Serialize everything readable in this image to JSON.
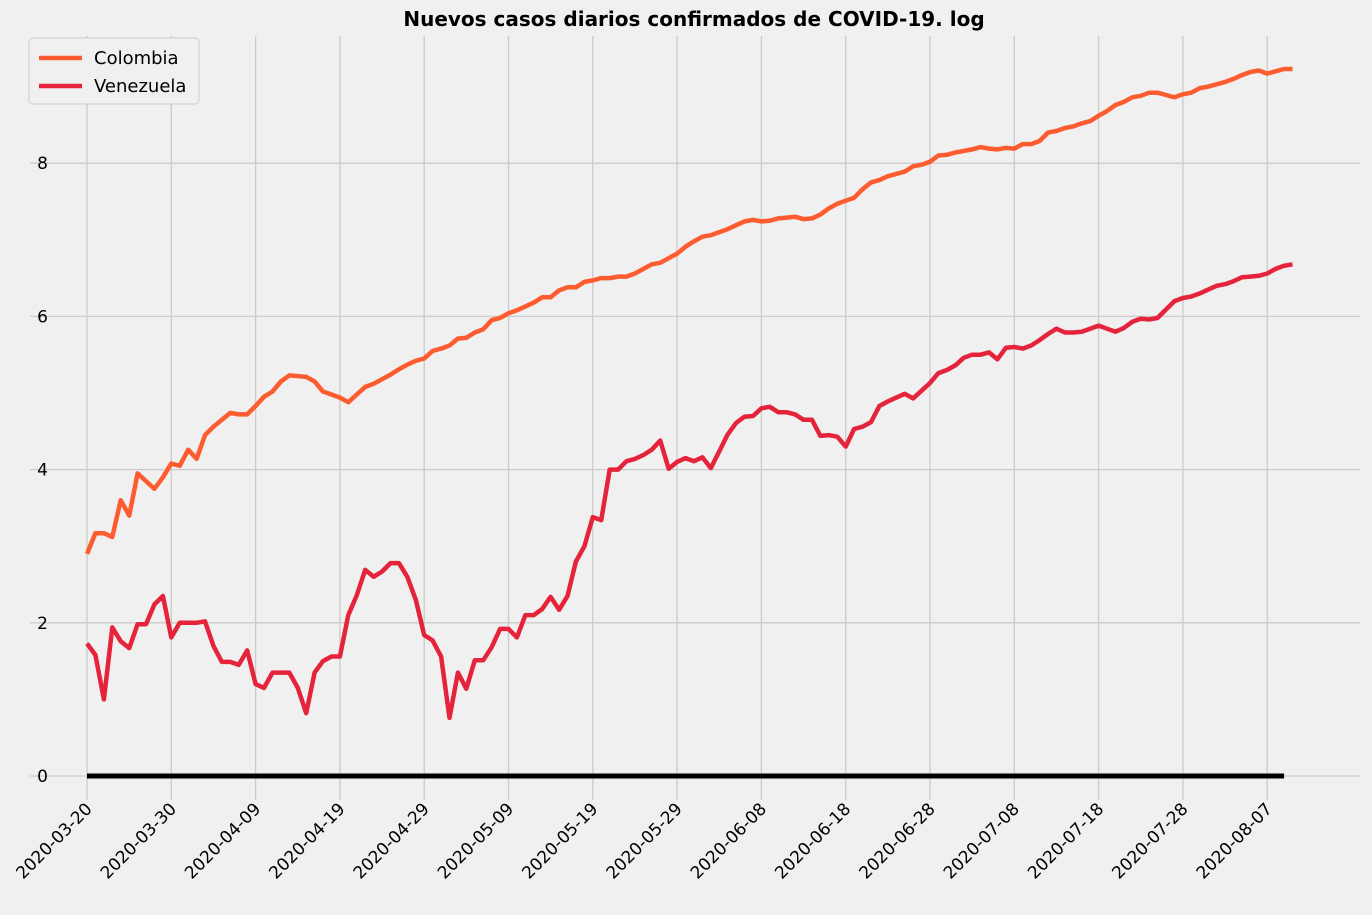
{
  "chart_data": {
    "type": "line",
    "title": "Nuevos casos diarios confirmados de COVID-19. log",
    "xlabel": "",
    "ylabel": "",
    "x_start": "2020-03-20",
    "x_end": "2020-08-09",
    "x_ticks": [
      "2020-03-20",
      "2020-03-30",
      "2020-04-09",
      "2020-04-19",
      "2020-04-29",
      "2020-05-09",
      "2020-05-19",
      "2020-05-29",
      "2020-06-08",
      "2020-06-18",
      "2020-06-28",
      "2020-07-08",
      "2020-07-18",
      "2020-07-28",
      "2020-08-07"
    ],
    "y_ticks": [
      0,
      2,
      4,
      6,
      8
    ],
    "ylim": [
      -0.5,
      9.65
    ],
    "grid": true,
    "legend_position": "top-left",
    "series": [
      {
        "name": "Colombia",
        "color": "#fc5c2f",
        "values": [
          [
            0,
            2.9
          ],
          [
            1,
            3.17
          ],
          [
            2,
            3.17
          ],
          [
            3,
            3.12
          ],
          [
            4,
            3.6
          ],
          [
            5,
            3.4
          ],
          [
            6,
            3.95
          ],
          [
            7,
            3.85
          ],
          [
            8,
            3.75
          ],
          [
            9,
            3.9
          ],
          [
            10,
            4.08
          ],
          [
            11,
            4.05
          ],
          [
            12,
            4.26
          ],
          [
            13,
            4.14
          ],
          [
            14,
            4.45
          ],
          [
            15,
            4.56
          ],
          [
            16,
            4.65
          ],
          [
            17,
            4.74
          ],
          [
            18,
            4.72
          ],
          [
            19,
            4.72
          ],
          [
            20,
            4.83
          ],
          [
            21,
            4.95
          ],
          [
            22,
            5.02
          ],
          [
            23,
            5.15
          ],
          [
            24,
            5.23
          ],
          [
            25,
            5.22
          ],
          [
            26,
            5.21
          ],
          [
            27,
            5.15
          ],
          [
            28,
            5.02
          ],
          [
            29,
            4.98
          ],
          [
            30,
            4.94
          ],
          [
            31,
            4.88
          ],
          [
            32,
            4.98
          ],
          [
            33,
            5.08
          ],
          [
            34,
            5.12
          ],
          [
            35,
            5.18
          ],
          [
            36,
            5.24
          ],
          [
            37,
            5.31
          ],
          [
            38,
            5.37
          ],
          [
            39,
            5.42
          ],
          [
            40,
            5.45
          ],
          [
            41,
            5.55
          ],
          [
            42,
            5.58
          ],
          [
            43,
            5.62
          ],
          [
            44,
            5.71
          ],
          [
            45,
            5.72
          ],
          [
            46,
            5.79
          ],
          [
            47,
            5.83
          ],
          [
            48,
            5.95
          ],
          [
            49,
            5.98
          ],
          [
            50,
            6.04
          ],
          [
            51,
            6.08
          ],
          [
            52,
            6.13
          ],
          [
            53,
            6.18
          ],
          [
            54,
            6.25
          ],
          [
            55,
            6.25
          ],
          [
            56,
            6.34
          ],
          [
            57,
            6.38
          ],
          [
            58,
            6.38
          ],
          [
            59,
            6.45
          ],
          [
            60,
            6.47
          ],
          [
            61,
            6.5
          ],
          [
            62,
            6.5
          ],
          [
            63,
            6.52
          ],
          [
            64,
            6.52
          ],
          [
            65,
            6.56
          ],
          [
            66,
            6.62
          ],
          [
            67,
            6.68
          ],
          [
            68,
            6.7
          ],
          [
            69,
            6.76
          ],
          [
            70,
            6.82
          ],
          [
            71,
            6.91
          ],
          [
            72,
            6.98
          ],
          [
            73,
            7.04
          ],
          [
            74,
            7.06
          ],
          [
            75,
            7.1
          ],
          [
            76,
            7.14
          ],
          [
            77,
            7.19
          ],
          [
            78,
            7.24
          ],
          [
            79,
            7.26
          ],
          [
            80,
            7.24
          ],
          [
            81,
            7.25
          ],
          [
            82,
            7.28
          ],
          [
            83,
            7.29
          ],
          [
            84,
            7.3
          ],
          [
            85,
            7.27
          ],
          [
            86,
            7.28
          ],
          [
            87,
            7.33
          ],
          [
            88,
            7.41
          ],
          [
            89,
            7.47
          ],
          [
            90,
            7.51
          ],
          [
            91,
            7.55
          ],
          [
            92,
            7.66
          ],
          [
            93,
            7.75
          ],
          [
            94,
            7.78
          ],
          [
            95,
            7.83
          ],
          [
            96,
            7.86
          ],
          [
            97,
            7.89
          ],
          [
            98,
            7.96
          ],
          [
            99,
            7.98
          ],
          [
            100,
            8.02
          ],
          [
            101,
            8.1
          ],
          [
            102,
            8.11
          ],
          [
            103,
            8.14
          ],
          [
            104,
            8.16
          ],
          [
            105,
            8.18
          ],
          [
            106,
            8.21
          ],
          [
            107,
            8.19
          ],
          [
            108,
            8.18
          ],
          [
            109,
            8.2
          ],
          [
            110,
            8.19
          ],
          [
            111,
            8.25
          ],
          [
            112,
            8.25
          ],
          [
            113,
            8.29
          ],
          [
            114,
            8.4
          ],
          [
            115,
            8.42
          ],
          [
            116,
            8.46
          ],
          [
            117,
            8.48
          ],
          [
            118,
            8.52
          ],
          [
            119,
            8.55
          ],
          [
            120,
            8.62
          ],
          [
            121,
            8.68
          ],
          [
            122,
            8.76
          ],
          [
            123,
            8.8
          ],
          [
            124,
            8.86
          ],
          [
            125,
            8.88
          ],
          [
            126,
            8.92
          ],
          [
            127,
            8.92
          ],
          [
            128,
            8.89
          ],
          [
            129,
            8.86
          ],
          [
            130,
            8.9
          ],
          [
            131,
            8.92
          ],
          [
            132,
            8.98
          ],
          [
            133,
            9.0
          ],
          [
            134,
            9.03
          ],
          [
            135,
            9.06
          ],
          [
            136,
            9.1
          ],
          [
            137,
            9.15
          ],
          [
            138,
            9.19
          ],
          [
            139,
            9.21
          ],
          [
            140,
            9.17
          ],
          [
            141,
            9.2
          ],
          [
            142,
            9.23
          ],
          [
            143,
            9.23
          ]
        ]
      },
      {
        "name": "Venezuela",
        "color": "#e5243b",
        "values": [
          [
            0,
            1.73
          ],
          [
            1,
            1.58
          ],
          [
            2,
            1.0
          ],
          [
            3,
            1.94
          ],
          [
            4,
            1.76
          ],
          [
            5,
            1.67
          ],
          [
            6,
            1.98
          ],
          [
            7,
            1.98
          ],
          [
            8,
            2.24
          ],
          [
            9,
            2.35
          ],
          [
            10,
            1.81
          ],
          [
            11,
            2.0
          ],
          [
            12,
            2.0
          ],
          [
            13,
            2.0
          ],
          [
            14,
            2.02
          ],
          [
            15,
            1.7
          ],
          [
            16,
            1.49
          ],
          [
            17,
            1.49
          ],
          [
            18,
            1.45
          ],
          [
            19,
            1.64
          ],
          [
            20,
            1.2
          ],
          [
            21,
            1.15
          ],
          [
            22,
            1.35
          ],
          [
            23,
            1.35
          ],
          [
            24,
            1.35
          ],
          [
            25,
            1.15
          ],
          [
            26,
            0.82
          ],
          [
            27,
            1.35
          ],
          [
            28,
            1.5
          ],
          [
            29,
            1.56
          ],
          [
            30,
            1.56
          ],
          [
            31,
            2.1
          ],
          [
            32,
            2.36
          ],
          [
            33,
            2.69
          ],
          [
            34,
            2.6
          ],
          [
            35,
            2.67
          ],
          [
            36,
            2.78
          ],
          [
            37,
            2.78
          ],
          [
            38,
            2.6
          ],
          [
            39,
            2.3
          ],
          [
            40,
            1.84
          ],
          [
            41,
            1.77
          ],
          [
            42,
            1.56
          ],
          [
            43,
            0.76
          ],
          [
            44,
            1.35
          ],
          [
            45,
            1.14
          ],
          [
            46,
            1.51
          ],
          [
            47,
            1.51
          ],
          [
            48,
            1.68
          ],
          [
            49,
            1.92
          ],
          [
            50,
            1.92
          ],
          [
            51,
            1.81
          ],
          [
            52,
            2.1
          ],
          [
            53,
            2.1
          ],
          [
            54,
            2.18
          ],
          [
            55,
            2.34
          ],
          [
            56,
            2.17
          ],
          [
            57,
            2.35
          ],
          [
            58,
            2.8
          ],
          [
            59,
            3.0
          ],
          [
            60,
            3.38
          ],
          [
            61,
            3.34
          ],
          [
            62,
            4.0
          ],
          [
            63,
            4.0
          ],
          [
            64,
            4.11
          ],
          [
            65,
            4.14
          ],
          [
            66,
            4.19
          ],
          [
            67,
            4.26
          ],
          [
            68,
            4.38
          ],
          [
            69,
            4.01
          ],
          [
            70,
            4.1
          ],
          [
            71,
            4.15
          ],
          [
            72,
            4.11
          ],
          [
            73,
            4.16
          ],
          [
            74,
            4.02
          ],
          [
            75,
            4.24
          ],
          [
            76,
            4.46
          ],
          [
            77,
            4.61
          ],
          [
            78,
            4.69
          ],
          [
            79,
            4.7
          ],
          [
            80,
            4.8
          ],
          [
            81,
            4.82
          ],
          [
            82,
            4.75
          ],
          [
            83,
            4.75
          ],
          [
            84,
            4.72
          ],
          [
            85,
            4.65
          ],
          [
            86,
            4.65
          ],
          [
            87,
            4.44
          ],
          [
            88,
            4.45
          ],
          [
            89,
            4.43
          ],
          [
            90,
            4.3
          ],
          [
            91,
            4.53
          ],
          [
            92,
            4.56
          ],
          [
            93,
            4.62
          ],
          [
            94,
            4.83
          ],
          [
            95,
            4.89
          ],
          [
            96,
            4.94
          ],
          [
            97,
            4.99
          ],
          [
            98,
            4.93
          ],
          [
            99,
            5.03
          ],
          [
            100,
            5.13
          ],
          [
            101,
            5.26
          ],
          [
            102,
            5.3
          ],
          [
            103,
            5.36
          ],
          [
            104,
            5.46
          ],
          [
            105,
            5.5
          ],
          [
            106,
            5.5
          ],
          [
            107,
            5.53
          ],
          [
            108,
            5.44
          ],
          [
            109,
            5.59
          ],
          [
            110,
            5.6
          ],
          [
            111,
            5.58
          ],
          [
            112,
            5.62
          ],
          [
            113,
            5.69
          ],
          [
            114,
            5.77
          ],
          [
            115,
            5.84
          ],
          [
            116,
            5.79
          ],
          [
            117,
            5.79
          ],
          [
            118,
            5.8
          ],
          [
            119,
            5.84
          ],
          [
            120,
            5.88
          ],
          [
            121,
            5.84
          ],
          [
            122,
            5.8
          ],
          [
            123,
            5.85
          ],
          [
            124,
            5.93
          ],
          [
            125,
            5.97
          ],
          [
            126,
            5.96
          ],
          [
            127,
            5.98
          ],
          [
            128,
            6.09
          ],
          [
            129,
            6.2
          ],
          [
            130,
            6.24
          ],
          [
            131,
            6.26
          ],
          [
            132,
            6.3
          ],
          [
            133,
            6.35
          ],
          [
            134,
            6.4
          ],
          [
            135,
            6.42
          ],
          [
            136,
            6.46
          ],
          [
            137,
            6.51
          ],
          [
            138,
            6.52
          ],
          [
            139,
            6.53
          ],
          [
            140,
            6.56
          ],
          [
            141,
            6.62
          ],
          [
            142,
            6.66
          ],
          [
            143,
            6.68
          ]
        ]
      }
    ],
    "baseline": {
      "y": 0,
      "color": "#000000"
    }
  }
}
